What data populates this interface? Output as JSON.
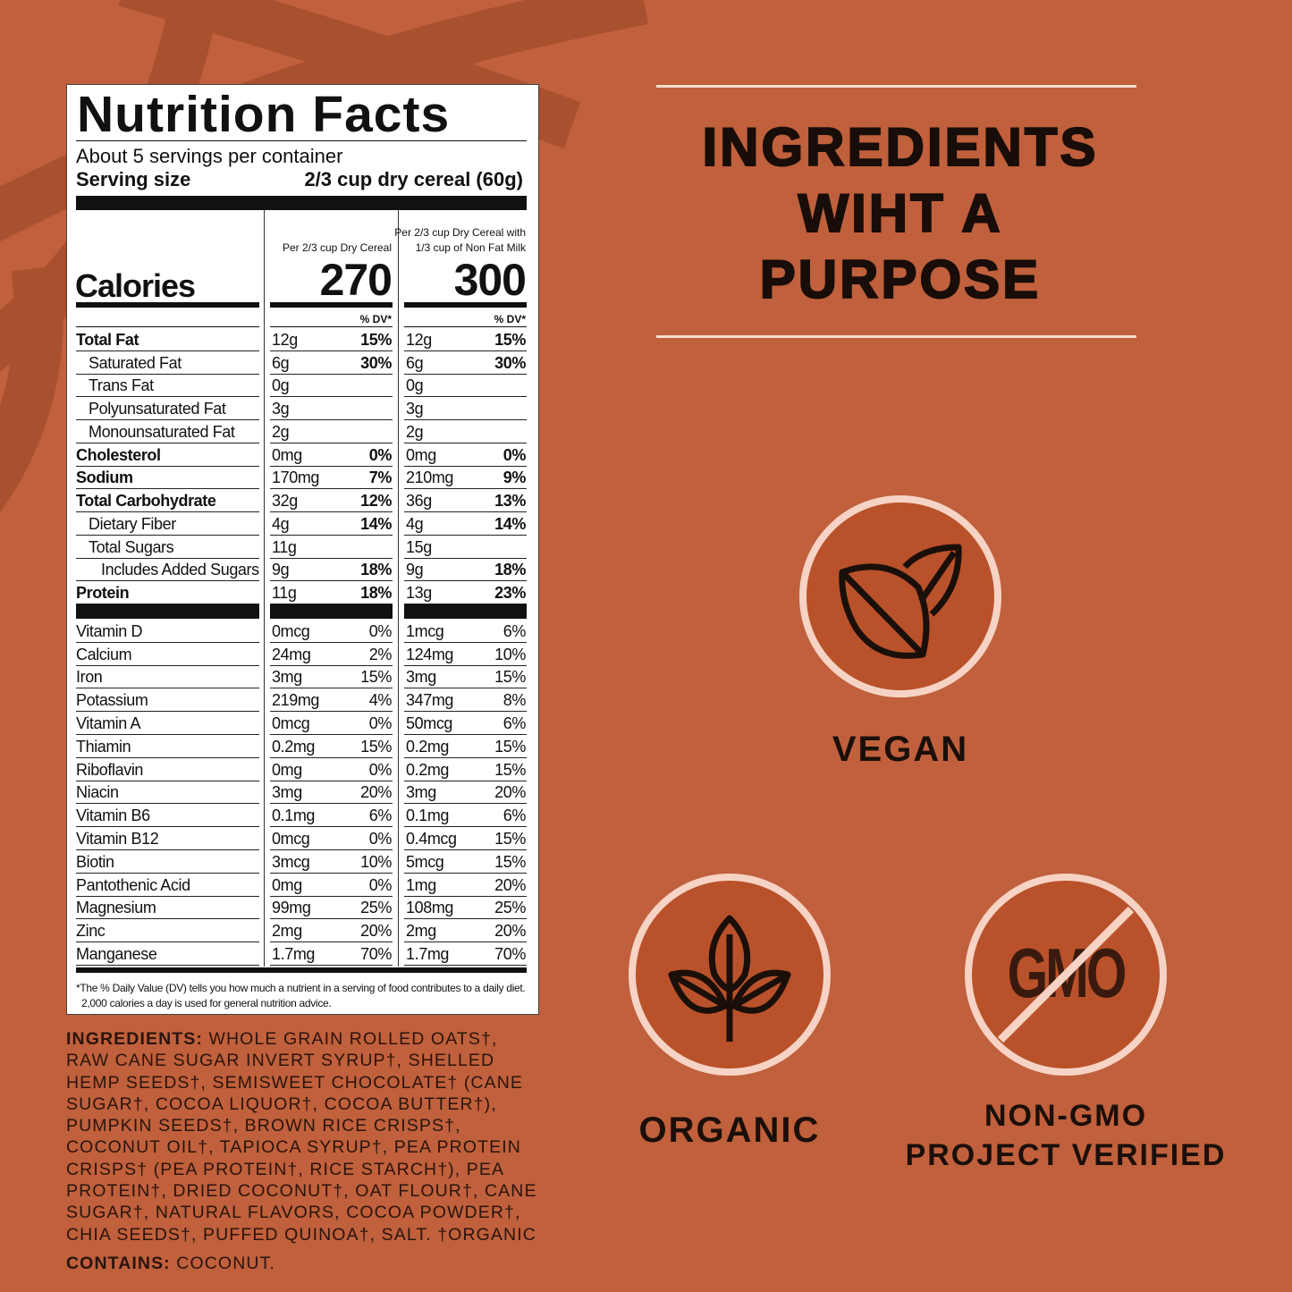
{
  "colors": {
    "background": "#c0603c",
    "stripe": "#a9502f",
    "badge_fill": "#b9522a",
    "badge_ring": "#f6d3c4",
    "text_dark": "#180d08"
  },
  "nutrition": {
    "title": "Nutrition Facts",
    "servings": "About 5 servings per container",
    "serving_size_label": "Serving size",
    "serving_size_value": "2/3 cup dry cereal (60g)",
    "calories_label": "Calories",
    "col1_header": "Per 2/3 cup Dry Cereal",
    "col2_header_line1": "Per 2/3 cup Dry Cereal with",
    "col2_header_line2": "1/3 cup of Non Fat Milk",
    "calories_1": "270",
    "calories_2": "300",
    "dv_header": "% DV*",
    "rows": [
      {
        "name": "Total Fat",
        "bold": true,
        "indent": 0,
        "v1": "12g",
        "dv1": "15%",
        "v2": "12g",
        "dv2": "15%"
      },
      {
        "name": "Saturated Fat",
        "bold": false,
        "indent": 1,
        "v1": "6g",
        "dv1": "30%",
        "v2": "6g",
        "dv2": "30%"
      },
      {
        "name": "Trans Fat",
        "bold": false,
        "indent": 1,
        "v1": "0g",
        "dv1": "",
        "v2": "0g",
        "dv2": ""
      },
      {
        "name": "Polyunsaturated Fat",
        "bold": false,
        "indent": 1,
        "v1": "3g",
        "dv1": "",
        "v2": "3g",
        "dv2": ""
      },
      {
        "name": "Monounsaturated Fat",
        "bold": false,
        "indent": 1,
        "v1": "2g",
        "dv1": "",
        "v2": "2g",
        "dv2": ""
      },
      {
        "name": "Cholesterol",
        "bold": true,
        "indent": 0,
        "v1": "0mg",
        "dv1": "0%",
        "v2": "0mg",
        "dv2": "0%"
      },
      {
        "name": "Sodium",
        "bold": true,
        "indent": 0,
        "v1": "170mg",
        "dv1": "7%",
        "v2": "210mg",
        "dv2": "9%"
      },
      {
        "name": "Total Carbohydrate",
        "bold": true,
        "indent": 0,
        "v1": "32g",
        "dv1": "12%",
        "v2": "36g",
        "dv2": "13%"
      },
      {
        "name": "Dietary Fiber",
        "bold": false,
        "indent": 1,
        "v1": "4g",
        "dv1": "14%",
        "v2": "4g",
        "dv2": "14%"
      },
      {
        "name": "Total Sugars",
        "bold": false,
        "indent": 1,
        "v1": "11g",
        "dv1": "",
        "v2": "15g",
        "dv2": ""
      },
      {
        "name": "Includes Added Sugars",
        "bold": false,
        "indent": 2,
        "v1": "9g",
        "dv1": "18%",
        "v2": "9g",
        "dv2": "18%"
      },
      {
        "name": "Protein",
        "bold": true,
        "indent": 0,
        "v1": "11g",
        "dv1": "18%",
        "v2": "13g",
        "dv2": "23%"
      }
    ],
    "vitamins": [
      {
        "name": "Vitamin D",
        "v1": "0mcg",
        "dv1": "0%",
        "v2": "1mcg",
        "dv2": "6%"
      },
      {
        "name": "Calcium",
        "v1": "24mg",
        "dv1": "2%",
        "v2": "124mg",
        "dv2": "10%"
      },
      {
        "name": "Iron",
        "v1": "3mg",
        "dv1": "15%",
        "v2": "3mg",
        "dv2": "15%"
      },
      {
        "name": "Potassium",
        "v1": "219mg",
        "dv1": "4%",
        "v2": "347mg",
        "dv2": "8%"
      },
      {
        "name": "Vitamin A",
        "v1": "0mcg",
        "dv1": "0%",
        "v2": "50mcg",
        "dv2": "6%"
      },
      {
        "name": "Thiamin",
        "v1": "0.2mg",
        "dv1": "15%",
        "v2": "0.2mg",
        "dv2": "15%"
      },
      {
        "name": "Riboflavin",
        "v1": "0mg",
        "dv1": "0%",
        "v2": "0.2mg",
        "dv2": "15%"
      },
      {
        "name": "Niacin",
        "v1": "3mg",
        "dv1": "20%",
        "v2": "3mg",
        "dv2": "20%"
      },
      {
        "name": "Vitamin B6",
        "v1": "0.1mg",
        "dv1": "6%",
        "v2": "0.1mg",
        "dv2": "6%"
      },
      {
        "name": "Vitamin B12",
        "v1": "0mcg",
        "dv1": "0%",
        "v2": "0.4mcg",
        "dv2": "15%"
      },
      {
        "name": "Biotin",
        "v1": "3mcg",
        "dv1": "10%",
        "v2": "5mcg",
        "dv2": "15%"
      },
      {
        "name": "Pantothenic Acid",
        "v1": "0mg",
        "dv1": "0%",
        "v2": "1mg",
        "dv2": "20%"
      },
      {
        "name": "Magnesium",
        "v1": "99mg",
        "dv1": "25%",
        "v2": "108mg",
        "dv2": "25%"
      },
      {
        "name": "Zinc",
        "v1": "2mg",
        "dv1": "20%",
        "v2": "2mg",
        "dv2": "20%"
      },
      {
        "name": "Manganese",
        "v1": "1.7mg",
        "dv1": "70%",
        "v2": "1.7mg",
        "dv2": "70%"
      }
    ],
    "footnote_line1": "*The % Daily Value (DV) tells you how much a nutrient in a serving of food contributes to a daily diet.",
    "footnote_line2": "2,000 calories a day is used for general nutrition advice."
  },
  "ingredients": {
    "label": "INGREDIENTS:",
    "lines": [
      " WHOLE GRAIN ROLLED OATS†,",
      "RAW CANE SUGAR INVERT SYRUP†, SHELLED",
      "HEMP SEEDS†, SEMISWEET CHOCOLATE† (CANE",
      "SUGAR†, COCOA LIQUOR†, COCOA BUTTER†),",
      "PUMPKIN SEEDS†, BROWN RICE CRISPS†,",
      "COCONUT OIL†, TAPIOCA SYRUP†, PEA PROTEIN",
      "CRISPS† (PEA PROTEIN†, RICE STARCH†), PEA",
      "PROTEIN†, DRIED COCONUT†, OAT FLOUR†, CANE",
      "SUGAR†, NATURAL FLAVORS, COCOA POWDER†,",
      "CHIA SEEDS†, PUFFED QUINOA†, SALT. †ORGANIC"
    ],
    "contains_label": "CONTAINS:",
    "contains_value": " COCONUT."
  },
  "heading": {
    "line1": "INGREDIENTS",
    "line2": "WIHT A",
    "line3": "PURPOSE"
  },
  "badges": {
    "vegan": {
      "label": "VEGAN",
      "icon": "leaf-icon"
    },
    "organic": {
      "label": "ORGANIC",
      "icon": "sprout-icon"
    },
    "nongmo": {
      "label_line1": "NON-GMO",
      "label_line2": "PROJECT VERIFIED",
      "icon": "no-gmo-icon",
      "icon_text": "GMO"
    }
  }
}
